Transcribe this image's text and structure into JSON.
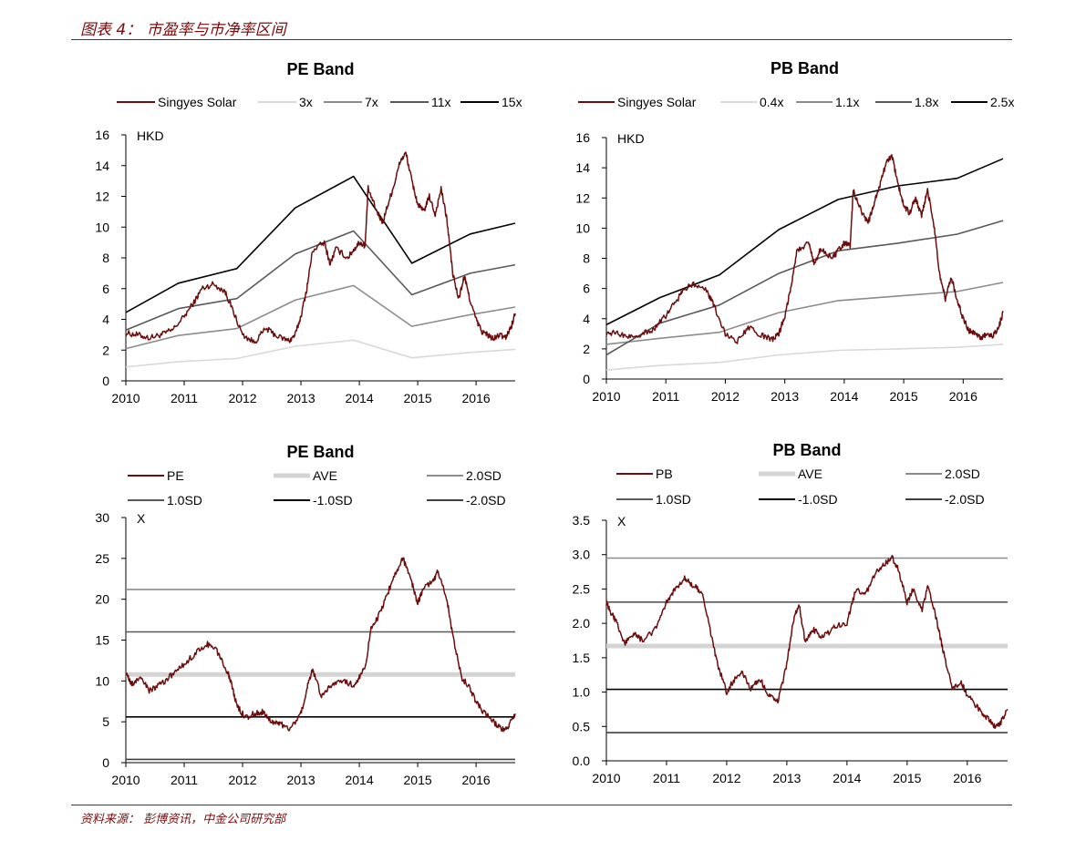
{
  "figure_title": "图表 4： 市盈率与市净率区间",
  "source_note": "资料来源： 彭博资讯，中金公司研究部",
  "chart_data": [
    {
      "id": "pe-band",
      "type": "line",
      "title": "PE Band",
      "ylabel": "HKD",
      "xlabel": "",
      "xlim": [
        2010,
        2016.67
      ],
      "ylim": [
        0,
        16
      ],
      "y_ticks": [
        0,
        2,
        4,
        6,
        8,
        10,
        12,
        14,
        16
      ],
      "x_ticks": [
        2010,
        2011,
        2012,
        2013,
        2014,
        2015,
        2016
      ],
      "x_tick_labels": [
        "2010",
        "2011",
        "2012",
        "2013",
        "2014",
        "2015",
        "2016"
      ],
      "grid": false,
      "legend_position": "top",
      "legend_rows": [
        [
          "Singyes Solar",
          "3x",
          "7x",
          "11x",
          "15x"
        ]
      ],
      "series": [
        {
          "name": "Singyes Solar",
          "color": "#6b0d0d",
          "width": 1.5,
          "noisy": true,
          "x": [
            2010,
            2010.2,
            2010.4,
            2010.6,
            2010.8,
            2011,
            2011.2,
            2011.3,
            2011.5,
            2011.7,
            2011.8,
            2012,
            2012.2,
            2012.4,
            2012.6,
            2012.8,
            2012.9,
            2013,
            2013.1,
            2013.2,
            2013.4,
            2013.5,
            2013.6,
            2013.8,
            2013.9,
            2014,
            2014.1,
            2014.15,
            2014.3,
            2014.4,
            2014.5,
            2014.6,
            2014.7,
            2014.8,
            2014.9,
            2015,
            2015.1,
            2015.2,
            2015.3,
            2015.4,
            2015.5,
            2015.6,
            2015.7,
            2015.8,
            2015.9,
            2016,
            2016.1,
            2016.2,
            2016.3,
            2016.4,
            2016.5,
            2016.6,
            2016.67
          ],
          "y": [
            3.1,
            3.0,
            2.8,
            3.0,
            3.3,
            4.2,
            5.3,
            6.0,
            6.3,
            5.8,
            4.9,
            3.0,
            2.5,
            3.4,
            2.9,
            2.6,
            3.0,
            4.2,
            6.0,
            8.5,
            9.0,
            7.6,
            8.6,
            8.0,
            8.5,
            9.0,
            8.8,
            12.5,
            11.0,
            10.3,
            11.6,
            12.8,
            14.3,
            14.8,
            13.0,
            11.5,
            11.0,
            12.0,
            10.8,
            12.5,
            10.5,
            7.0,
            5.3,
            6.8,
            5.2,
            4.0,
            3.2,
            3.0,
            2.7,
            3.0,
            2.8,
            3.5,
            4.4
          ]
        },
        {
          "name": "3x",
          "color": "#d9d9d9",
          "width": 1.6,
          "noisy": false,
          "x": [
            2010,
            2010.9,
            2011.9,
            2012.9,
            2013.9,
            2014.9,
            2015.9,
            2016.67
          ],
          "y": [
            0.9,
            1.25,
            1.45,
            2.25,
            2.65,
            1.5,
            1.85,
            2.05
          ]
        },
        {
          "name": "7x",
          "color": "#8c8c8c",
          "width": 1.6,
          "noisy": false,
          "x": [
            2010,
            2010.9,
            2011.9,
            2012.9,
            2013.9,
            2014.9,
            2015.9,
            2016.67
          ],
          "y": [
            2.1,
            2.95,
            3.4,
            5.25,
            6.2,
            3.55,
            4.3,
            4.8
          ]
        },
        {
          "name": "11x",
          "color": "#595959",
          "width": 1.6,
          "noisy": false,
          "x": [
            2010,
            2010.9,
            2011.9,
            2012.9,
            2013.9,
            2014.9,
            2015.9,
            2016.67
          ],
          "y": [
            3.3,
            4.7,
            5.35,
            8.25,
            9.75,
            5.6,
            7.0,
            7.55
          ]
        },
        {
          "name": "15x",
          "color": "#000000",
          "width": 1.6,
          "noisy": false,
          "x": [
            2010,
            2010.9,
            2011.9,
            2012.9,
            2013.9,
            2014.9,
            2015.9,
            2016.67
          ],
          "y": [
            4.45,
            6.35,
            7.3,
            11.25,
            13.3,
            7.65,
            9.55,
            10.25
          ]
        }
      ]
    },
    {
      "id": "pb-band",
      "type": "line",
      "title": "PB Band",
      "ylabel": "HKD",
      "xlabel": "",
      "xlim": [
        2010,
        2016.67
      ],
      "ylim": [
        0,
        16
      ],
      "y_ticks": [
        0,
        2,
        4,
        6,
        8,
        10,
        12,
        14,
        16
      ],
      "x_ticks": [
        2010,
        2011,
        2012,
        2013,
        2014,
        2015,
        2016
      ],
      "x_tick_labels": [
        "2010",
        "2011",
        "2012",
        "2013",
        "2014",
        "2015",
        "2016"
      ],
      "grid": false,
      "legend_position": "top",
      "legend_rows": [
        [
          "Singyes Solar",
          "0.4x",
          "1.1x",
          "1.8x",
          "2.5x"
        ]
      ],
      "series": [
        {
          "name": "Singyes Solar",
          "color": "#6b0d0d",
          "width": 1.5,
          "noisy": true,
          "x": [
            2010,
            2010.2,
            2010.4,
            2010.6,
            2010.8,
            2011,
            2011.2,
            2011.3,
            2011.5,
            2011.7,
            2011.8,
            2012,
            2012.2,
            2012.4,
            2012.6,
            2012.8,
            2012.9,
            2013,
            2013.1,
            2013.2,
            2013.4,
            2013.5,
            2013.6,
            2013.8,
            2013.9,
            2014,
            2014.1,
            2014.15,
            2014.3,
            2014.4,
            2014.5,
            2014.6,
            2014.7,
            2014.8,
            2014.9,
            2015,
            2015.1,
            2015.2,
            2015.3,
            2015.4,
            2015.5,
            2015.6,
            2015.7,
            2015.8,
            2015.9,
            2016,
            2016.1,
            2016.2,
            2016.3,
            2016.4,
            2016.5,
            2016.6,
            2016.67
          ],
          "y": [
            3.1,
            3.0,
            2.8,
            3.0,
            3.3,
            4.2,
            5.3,
            6.0,
            6.3,
            5.8,
            4.9,
            3.0,
            2.5,
            3.4,
            2.9,
            2.6,
            3.0,
            4.2,
            6.0,
            8.5,
            9.0,
            7.6,
            8.6,
            8.0,
            8.5,
            9.0,
            8.8,
            12.5,
            11.0,
            10.3,
            11.6,
            12.8,
            14.3,
            14.8,
            13.0,
            11.5,
            11.0,
            12.0,
            10.8,
            12.5,
            10.5,
            7.0,
            5.3,
            6.8,
            5.2,
            4.0,
            3.2,
            3.0,
            2.7,
            3.0,
            2.8,
            3.5,
            4.4
          ]
        },
        {
          "name": "0.4x",
          "color": "#d9d9d9",
          "width": 1.6,
          "noisy": false,
          "x": [
            2010,
            2010.9,
            2011.9,
            2012.9,
            2013.9,
            2014.9,
            2015.9,
            2016.67
          ],
          "y": [
            0.6,
            0.9,
            1.1,
            1.6,
            1.9,
            2.0,
            2.1,
            2.3
          ]
        },
        {
          "name": "1.1x",
          "color": "#8c8c8c",
          "width": 1.6,
          "noisy": false,
          "x": [
            2010,
            2010.9,
            2011.9,
            2012.9,
            2013.9,
            2014.9,
            2015.9,
            2016.67
          ],
          "y": [
            2.3,
            2.7,
            3.1,
            4.4,
            5.2,
            5.5,
            5.8,
            6.4
          ]
        },
        {
          "name": "1.8x",
          "color": "#595959",
          "width": 1.6,
          "noisy": false,
          "x": [
            2010,
            2010.9,
            2011.9,
            2012.9,
            2013.9,
            2014.9,
            2015.9,
            2016.67
          ],
          "y": [
            1.6,
            3.7,
            4.9,
            7.0,
            8.5,
            9.0,
            9.6,
            10.5
          ]
        },
        {
          "name": "2.5x",
          "color": "#000000",
          "width": 1.6,
          "noisy": false,
          "x": [
            2010,
            2010.9,
            2011.9,
            2012.9,
            2013.9,
            2014.9,
            2015.9,
            2016.67
          ],
          "y": [
            3.6,
            5.4,
            6.9,
            9.9,
            11.9,
            12.8,
            13.3,
            14.6
          ]
        }
      ]
    },
    {
      "id": "pe-band-sd",
      "type": "line",
      "title": "PE Band",
      "ylabel": "X",
      "xlabel": "",
      "xlim": [
        2010,
        2016.67
      ],
      "ylim": [
        0,
        30
      ],
      "y_ticks": [
        0,
        5,
        10,
        15,
        20,
        25,
        30
      ],
      "x_ticks": [
        2010,
        2011,
        2012,
        2013,
        2014,
        2015,
        2016
      ],
      "x_tick_labels": [
        "2010",
        "2011",
        "2012",
        "2013",
        "2014",
        "2015",
        "2016"
      ],
      "grid": false,
      "legend_position": "top",
      "legend_rows": [
        [
          "PE",
          "AVE",
          "2.0SD"
        ],
        [
          "1.0SD",
          "-1.0SD",
          "-2.0SD"
        ]
      ],
      "series": [
        {
          "name": "PE",
          "color": "#6b0d0d",
          "width": 1.5,
          "noisy": true,
          "x": [
            2010,
            2010.1,
            2010.25,
            2010.4,
            2010.6,
            2010.8,
            2011,
            2011.2,
            2011.4,
            2011.55,
            2011.7,
            2011.8,
            2011.9,
            2012.05,
            2012.2,
            2012.35,
            2012.5,
            2012.65,
            2012.8,
            2013,
            2013.1,
            2013.2,
            2013.35,
            2013.5,
            2013.7,
            2013.9,
            2014,
            2014.1,
            2014.2,
            2014.3,
            2014.45,
            2014.6,
            2014.75,
            2014.9,
            2015.0,
            2015.1,
            2015.25,
            2015.35,
            2015.5,
            2015.6,
            2015.75,
            2015.9,
            2016,
            2016.15,
            2016.3,
            2016.45,
            2016.55,
            2016.67
          ],
          "y": [
            11,
            9.5,
            10.5,
            8.8,
            9.6,
            10.8,
            12.0,
            13.5,
            14.5,
            13.8,
            11.8,
            10.0,
            7.0,
            5.5,
            6.0,
            6.2,
            5.0,
            4.8,
            4.0,
            6.0,
            9.0,
            11.5,
            8.0,
            9.5,
            10.0,
            9.5,
            10.5,
            11.5,
            16.5,
            17.5,
            20.0,
            23.0,
            25.0,
            22.0,
            19.5,
            21.5,
            22.0,
            23.5,
            20.0,
            15.5,
            10.5,
            9.0,
            7.5,
            6.0,
            5.0,
            4.0,
            4.5,
            6.0
          ]
        },
        {
          "name": "AVE",
          "color": "#d4d4d4",
          "width": 5,
          "noisy": false,
          "x": [
            2010,
            2016.67
          ],
          "y": [
            10.8,
            10.8
          ]
        },
        {
          "name": "2.0SD",
          "color": "#8c8c8c",
          "width": 1.6,
          "noisy": false,
          "x": [
            2010,
            2016.67
          ],
          "y": [
            21.2,
            21.2
          ]
        },
        {
          "name": "1.0SD",
          "color": "#595959",
          "width": 1.6,
          "noisy": false,
          "x": [
            2010,
            2016.67
          ],
          "y": [
            16.0,
            16.0
          ]
        },
        {
          "name": "-1.0SD",
          "color": "#000000",
          "width": 1.6,
          "noisy": false,
          "x": [
            2010,
            2016.67
          ],
          "y": [
            5.6,
            5.6
          ]
        },
        {
          "name": "-2.0SD",
          "color": "#404040",
          "width": 1.6,
          "noisy": false,
          "x": [
            2010,
            2016.67
          ],
          "y": [
            0.4,
            0.4
          ]
        }
      ]
    },
    {
      "id": "pb-band-sd",
      "type": "line",
      "title": "PB Band",
      "ylabel": "X",
      "xlabel": "",
      "xlim": [
        2010,
        2016.67
      ],
      "ylim": [
        0,
        3.5
      ],
      "y_ticks": [
        0,
        0.5,
        1,
        1.5,
        2,
        2.5,
        3,
        3.5
      ],
      "y_tick_labels": [
        "0.0",
        "0.5",
        "1.0",
        "1.5",
        "2.0",
        "2.5",
        "3.0",
        "3.5"
      ],
      "x_ticks": [
        2010,
        2011,
        2012,
        2013,
        2014,
        2015,
        2016
      ],
      "x_tick_labels": [
        "2010",
        "2011",
        "2012",
        "2013",
        "2014",
        "2015",
        "2016"
      ],
      "grid": false,
      "legend_position": "top",
      "legend_rows": [
        [
          "PB",
          "AVE",
          "2.0SD"
        ],
        [
          "1.0SD",
          "-1.0SD",
          "-2.0SD"
        ]
      ],
      "series": [
        {
          "name": "PB",
          "color": "#6b0d0d",
          "width": 1.5,
          "noisy": true,
          "x": [
            2010,
            2010.05,
            2010.15,
            2010.3,
            2010.45,
            2010.6,
            2010.8,
            2011,
            2011.15,
            2011.3,
            2011.45,
            2011.6,
            2011.75,
            2011.85,
            2012,
            2012.1,
            2012.25,
            2012.4,
            2012.55,
            2012.7,
            2012.85,
            2013,
            2013.1,
            2013.2,
            2013.3,
            2013.45,
            2013.6,
            2013.8,
            2014,
            2014.15,
            2014.3,
            2014.45,
            2014.6,
            2014.75,
            2014.85,
            2015,
            2015.1,
            2015.25,
            2015.35,
            2015.5,
            2015.6,
            2015.75,
            2015.9,
            2016,
            2016.15,
            2016.3,
            2016.45,
            2016.55,
            2016.67
          ],
          "y": [
            2.3,
            2.2,
            2.05,
            1.7,
            1.85,
            1.75,
            1.9,
            2.3,
            2.5,
            2.65,
            2.55,
            2.45,
            1.8,
            1.4,
            1.0,
            1.15,
            1.3,
            1.05,
            1.2,
            0.95,
            0.85,
            1.4,
            2.0,
            2.3,
            1.75,
            1.9,
            1.8,
            1.95,
            2.0,
            2.5,
            2.4,
            2.7,
            2.85,
            2.95,
            2.8,
            2.3,
            2.5,
            2.2,
            2.55,
            2.0,
            1.6,
            1.05,
            1.15,
            0.95,
            0.8,
            0.65,
            0.5,
            0.55,
            0.75
          ]
        },
        {
          "name": "AVE",
          "color": "#d4d4d4",
          "width": 5,
          "noisy": false,
          "x": [
            2010,
            2016.67
          ],
          "y": [
            1.67,
            1.67
          ]
        },
        {
          "name": "2.0SD",
          "color": "#8c8c8c",
          "width": 1.6,
          "noisy": false,
          "x": [
            2010,
            2016.67
          ],
          "y": [
            2.95,
            2.95
          ]
        },
        {
          "name": "1.0SD",
          "color": "#595959",
          "width": 1.6,
          "noisy": false,
          "x": [
            2010,
            2016.67
          ],
          "y": [
            2.31,
            2.31
          ]
        },
        {
          "name": "-1.0SD",
          "color": "#000000",
          "width": 1.6,
          "noisy": false,
          "x": [
            2010,
            2016.67
          ],
          "y": [
            1.04,
            1.04
          ]
        },
        {
          "name": "-2.0SD",
          "color": "#404040",
          "width": 1.6,
          "noisy": false,
          "x": [
            2010,
            2016.67
          ],
          "y": [
            0.41,
            0.41
          ]
        }
      ]
    }
  ]
}
